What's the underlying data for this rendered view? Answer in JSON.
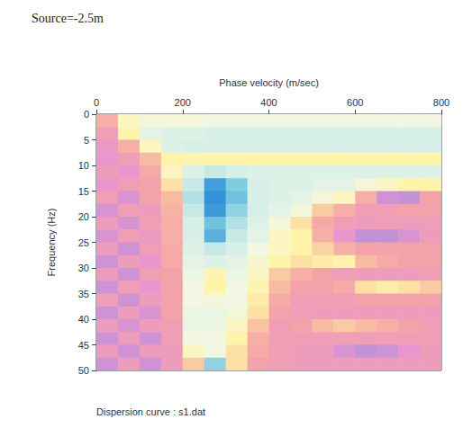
{
  "chart_data": {
    "type": "heatmap",
    "title": "Source=-2.5m",
    "x_label": "Phase velocity (m/sec)",
    "y_label": "Frequency (Hz)",
    "annotations": [
      "Dispersion curve : s1.dat"
    ],
    "xlim": [
      0,
      800
    ],
    "xticks": [
      0,
      200,
      400,
      600,
      800
    ],
    "ylim": [
      0,
      50
    ],
    "yticks": [
      0,
      5,
      10,
      15,
      20,
      25,
      30,
      35,
      40,
      45,
      50
    ],
    "grid": false,
    "x_bins": [
      0,
      50,
      100,
      150,
      200,
      250,
      300,
      350,
      400,
      450,
      500,
      550,
      600,
      650,
      700,
      750,
      800
    ],
    "y_bins": [
      0,
      2.5,
      5,
      7.5,
      10,
      12.5,
      15,
      17.5,
      20,
      22.5,
      25,
      27.5,
      30,
      32.5,
      35,
      37.5,
      40,
      42.5,
      45,
      47.5,
      50
    ],
    "zlim": [
      0,
      1
    ],
    "values": [
      [
        0.3,
        0.55,
        0.6,
        0.6,
        0.6,
        0.62,
        0.62,
        0.62,
        0.62,
        0.62,
        0.62,
        0.62,
        0.62,
        0.62,
        0.62,
        0.62
      ],
      [
        0.22,
        0.5,
        0.66,
        0.68,
        0.68,
        0.7,
        0.7,
        0.7,
        0.7,
        0.7,
        0.7,
        0.7,
        0.7,
        0.7,
        0.7,
        0.7
      ],
      [
        0.18,
        0.3,
        0.55,
        0.68,
        0.7,
        0.7,
        0.7,
        0.7,
        0.7,
        0.7,
        0.7,
        0.7,
        0.7,
        0.7,
        0.7,
        0.7
      ],
      [
        0.15,
        0.22,
        0.35,
        0.5,
        0.52,
        0.5,
        0.5,
        0.5,
        0.5,
        0.5,
        0.5,
        0.5,
        0.5,
        0.5,
        0.5,
        0.5
      ],
      [
        0.2,
        0.15,
        0.28,
        0.55,
        0.68,
        0.72,
        0.7,
        0.68,
        0.68,
        0.68,
        0.68,
        0.68,
        0.68,
        0.68,
        0.68,
        0.68
      ],
      [
        0.15,
        0.22,
        0.25,
        0.45,
        0.72,
        0.95,
        0.82,
        0.7,
        0.68,
        0.68,
        0.66,
        0.66,
        0.6,
        0.55,
        0.5,
        0.5
      ],
      [
        0.22,
        0.12,
        0.25,
        0.35,
        0.75,
        0.98,
        0.85,
        0.7,
        0.68,
        0.66,
        0.6,
        0.55,
        0.3,
        0.1,
        0.08,
        0.25
      ],
      [
        0.12,
        0.22,
        0.2,
        0.32,
        0.72,
        0.96,
        0.8,
        0.7,
        0.66,
        0.6,
        0.4,
        0.3,
        0.22,
        0.22,
        0.25,
        0.25
      ],
      [
        0.2,
        0.12,
        0.22,
        0.3,
        0.7,
        0.85,
        0.75,
        0.68,
        0.6,
        0.45,
        0.28,
        0.22,
        0.2,
        0.22,
        0.2,
        0.2
      ],
      [
        0.12,
        0.22,
        0.18,
        0.3,
        0.7,
        0.9,
        0.72,
        0.66,
        0.55,
        0.5,
        0.3,
        0.15,
        0.08,
        0.08,
        0.12,
        0.2
      ],
      [
        0.2,
        0.1,
        0.22,
        0.28,
        0.68,
        0.72,
        0.7,
        0.62,
        0.55,
        0.5,
        0.42,
        0.3,
        0.25,
        0.25,
        0.25,
        0.25
      ],
      [
        0.1,
        0.2,
        0.15,
        0.28,
        0.66,
        0.68,
        0.66,
        0.58,
        0.5,
        0.45,
        0.48,
        0.5,
        0.35,
        0.28,
        0.25,
        0.25
      ],
      [
        0.2,
        0.1,
        0.22,
        0.25,
        0.64,
        0.52,
        0.64,
        0.55,
        0.4,
        0.3,
        0.25,
        0.22,
        0.2,
        0.2,
        0.2,
        0.22
      ],
      [
        0.1,
        0.22,
        0.15,
        0.25,
        0.62,
        0.5,
        0.62,
        0.52,
        0.35,
        0.25,
        0.25,
        0.28,
        0.45,
        0.48,
        0.45,
        0.4
      ],
      [
        0.22,
        0.1,
        0.2,
        0.25,
        0.62,
        0.6,
        0.62,
        0.48,
        0.28,
        0.22,
        0.22,
        0.22,
        0.25,
        0.25,
        0.25,
        0.25
      ],
      [
        0.1,
        0.2,
        0.12,
        0.25,
        0.64,
        0.64,
        0.6,
        0.45,
        0.25,
        0.22,
        0.2,
        0.2,
        0.2,
        0.2,
        0.2,
        0.2
      ],
      [
        0.2,
        0.12,
        0.2,
        0.22,
        0.64,
        0.64,
        0.55,
        0.38,
        0.22,
        0.25,
        0.35,
        0.4,
        0.35,
        0.3,
        0.25,
        0.22
      ],
      [
        0.1,
        0.2,
        0.1,
        0.22,
        0.62,
        0.62,
        0.5,
        0.3,
        0.22,
        0.22,
        0.22,
        0.22,
        0.22,
        0.22,
        0.22,
        0.22
      ],
      [
        0.2,
        0.1,
        0.2,
        0.2,
        0.55,
        0.62,
        0.45,
        0.28,
        0.22,
        0.2,
        0.2,
        0.12,
        0.08,
        0.1,
        0.15,
        0.2
      ],
      [
        0.1,
        0.2,
        0.1,
        0.2,
        0.4,
        0.8,
        0.45,
        0.25,
        0.22,
        0.2,
        0.2,
        0.2,
        0.2,
        0.2,
        0.2,
        0.2
      ]
    ]
  }
}
